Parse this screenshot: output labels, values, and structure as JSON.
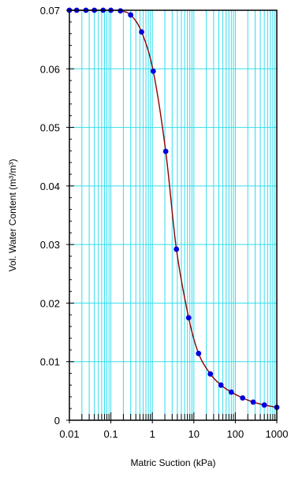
{
  "chart_data": {
    "type": "scatter",
    "xlabel": "Matric Suction (kPa)",
    "ylabel": "Vol. Water Content (m³/m³)",
    "xscale": "log",
    "xlim": [
      0.01,
      1000
    ],
    "ylim": [
      0,
      0.07
    ],
    "x_tick_labels": [
      "0.01",
      "0.1",
      "1",
      "10",
      "100",
      "1000"
    ],
    "x_tick_values": [
      0.01,
      0.1,
      1,
      10,
      100,
      1000
    ],
    "y_tick_labels": [
      "0",
      "0.01",
      "0.02",
      "0.03",
      "0.04",
      "0.05",
      "0.06",
      "0.07"
    ],
    "y_tick_values": [
      0,
      0.01,
      0.02,
      0.03,
      0.04,
      0.05,
      0.06,
      0.07
    ],
    "grid": true,
    "colors": {
      "grid": "#33ddee",
      "curve": "#8b0000",
      "points": "#0000dd",
      "frame": "#000000"
    },
    "series": [
      {
        "x": [
          0.01,
          0.015,
          0.025,
          0.04,
          0.065,
          0.1,
          0.17,
          0.3,
          0.55,
          1.05,
          2.1,
          3.8,
          7.5,
          13,
          25,
          45,
          80,
          150,
          270,
          500,
          1000
        ],
        "y": [
          0.07,
          0.07,
          0.07,
          0.07,
          0.07,
          0.07,
          0.0699,
          0.0692,
          0.0663,
          0.0596,
          0.0459,
          0.0292,
          0.0175,
          0.0114,
          0.0079,
          0.006,
          0.0048,
          0.0038,
          0.0031,
          0.0026,
          0.0022
        ]
      }
    ]
  }
}
